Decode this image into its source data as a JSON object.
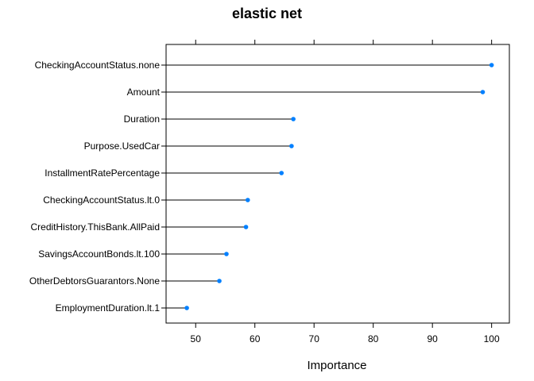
{
  "chart_data": {
    "type": "dot",
    "title": "elastic net",
    "xlabel": "Importance",
    "ylabel": "",
    "xlim": [
      45,
      103
    ],
    "xticks": [
      "50",
      "60",
      "70",
      "80",
      "90",
      "100"
    ],
    "grid": false,
    "point_color": "#0080ff",
    "categories": [
      "CheckingAccountStatus.none",
      "Amount",
      "Duration",
      "Purpose.UsedCar",
      "InstallmentRatePercentage",
      "CheckingAccountStatus.lt.0",
      "CreditHistory.ThisBank.AllPaid",
      "SavingsAccountBonds.lt.100",
      "OtherDebtorsGuarantors.None",
      "EmploymentDuration.lt.1"
    ],
    "values": [
      100,
      98.5,
      66.5,
      66.2,
      64.5,
      58.8,
      58.5,
      55.2,
      54,
      48.5
    ]
  }
}
